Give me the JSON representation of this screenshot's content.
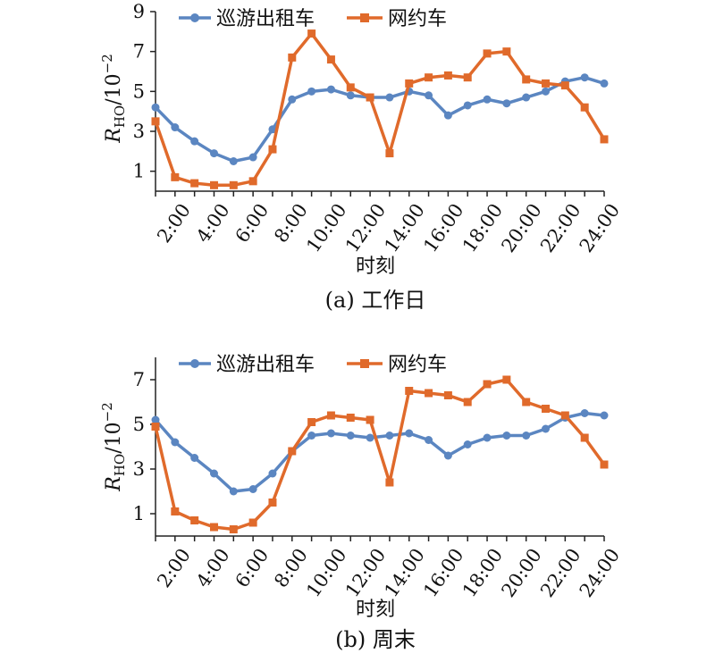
{
  "colors": {
    "taxi": "#5b86c1",
    "ridehail": "#e06a2b",
    "axis": "#222222"
  },
  "charts": [
    {
      "caption": "(a) 工作日",
      "chart_data": {
        "type": "line",
        "x": [
          1,
          2,
          3,
          4,
          5,
          6,
          7,
          8,
          9,
          10,
          11,
          12,
          13,
          14,
          15,
          16,
          17,
          18,
          19,
          20,
          21,
          22,
          23,
          24
        ],
        "x_tick_labels": [
          "2:00",
          "4:00",
          "6:00",
          "8:00",
          "10:00",
          "12:00",
          "14:00",
          "16:00",
          "18:00",
          "20:00",
          "22:00",
          "24:00"
        ],
        "x_tick_positions": [
          2,
          4,
          6,
          8,
          10,
          12,
          14,
          16,
          18,
          20,
          22,
          24
        ],
        "xlabel": "时刻",
        "ylabel_main": "R",
        "ylabel_sub": "HO",
        "ylabel_unit": "/10",
        "ylabel_exp": "−2",
        "ylim": [
          0,
          9
        ],
        "y_ticks": [
          "1",
          "3",
          "5",
          "7",
          "9"
        ],
        "legend": "top",
        "series": [
          {
            "name": "巡游出租车",
            "marker": "circle",
            "values": [
              4.2,
              3.2,
              2.5,
              1.9,
              1.5,
              1.7,
              3.1,
              4.6,
              5.0,
              5.1,
              4.8,
              4.7,
              4.7,
              5.0,
              4.8,
              3.8,
              4.3,
              4.6,
              4.4,
              4.7,
              5.0,
              5.5,
              5.7,
              5.4
            ]
          },
          {
            "name": "网约车",
            "marker": "square",
            "values": [
              3.5,
              0.7,
              0.4,
              0.3,
              0.3,
              0.5,
              2.1,
              6.7,
              7.9,
              6.6,
              5.2,
              4.7,
              1.9,
              5.4,
              5.7,
              5.8,
              5.7,
              6.9,
              7.0,
              5.6,
              5.4,
              5.3,
              4.2,
              2.6
            ]
          }
        ]
      }
    },
    {
      "caption": "(b) 周末",
      "chart_data": {
        "type": "line",
        "x": [
          1,
          2,
          3,
          4,
          5,
          6,
          7,
          8,
          9,
          10,
          11,
          12,
          13,
          14,
          15,
          16,
          17,
          18,
          19,
          20,
          21,
          22,
          23,
          24
        ],
        "x_tick_labels": [
          "2:00",
          "4:00",
          "6:00",
          "8:00",
          "10:00",
          "12:00",
          "14:00",
          "16:00",
          "18:00",
          "20:00",
          "22:00",
          "24:00"
        ],
        "x_tick_positions": [
          2,
          4,
          6,
          8,
          10,
          12,
          14,
          16,
          18,
          20,
          22,
          24
        ],
        "xlabel": "时刻",
        "ylabel_main": "R",
        "ylabel_sub": "HO",
        "ylabel_unit": "/10",
        "ylabel_exp": "−2",
        "ylim": [
          0,
          8
        ],
        "y_ticks": [
          "1",
          "3",
          "5",
          "7"
        ],
        "legend": "top",
        "series": [
          {
            "name": "巡游出租车",
            "marker": "circle",
            "values": [
              5.2,
              4.2,
              3.5,
              2.8,
              2.0,
              2.1,
              2.8,
              3.8,
              4.5,
              4.6,
              4.5,
              4.4,
              4.5,
              4.6,
              4.3,
              3.6,
              4.1,
              4.4,
              4.5,
              4.5,
              4.8,
              5.3,
              5.5,
              5.4
            ]
          },
          {
            "name": "网约车",
            "marker": "square",
            "values": [
              4.9,
              1.1,
              0.7,
              0.4,
              0.3,
              0.6,
              1.5,
              3.8,
              5.1,
              5.4,
              5.3,
              5.2,
              2.4,
              6.5,
              6.4,
              6.3,
              6.0,
              6.8,
              7.0,
              6.0,
              5.7,
              5.4,
              4.4,
              3.2
            ]
          }
        ]
      }
    }
  ]
}
